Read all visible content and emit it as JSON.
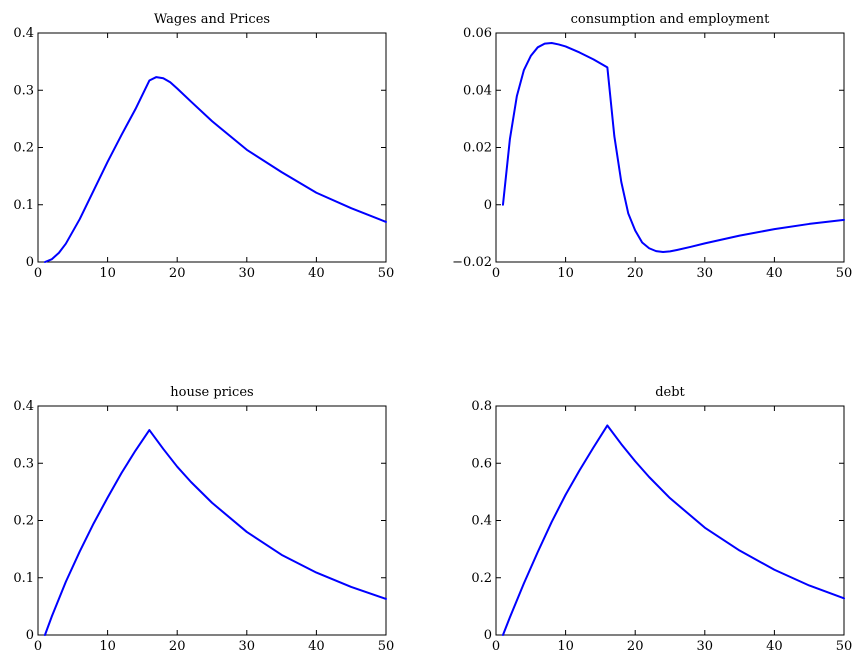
{
  "chart_data": [
    {
      "type": "line",
      "title": "Wages and Prices",
      "xlabel": "",
      "ylabel": "",
      "xlim": [
        0,
        50
      ],
      "ylim": [
        0,
        0.4
      ],
      "xticks": [
        0,
        10,
        20,
        30,
        40,
        50
      ],
      "yticks": [
        0,
        0.1,
        0.2,
        0.3,
        0.4
      ],
      "xtick_labels": [
        "0",
        "10",
        "20",
        "30",
        "40",
        "50"
      ],
      "ytick_labels": [
        "0",
        "0.1",
        "0.2",
        "0.3",
        "0.4"
      ],
      "grid": false,
      "series": [
        {
          "color": "#0000ff",
          "x": [
            1,
            2,
            3,
            4,
            6,
            8,
            10,
            12,
            14,
            16,
            17,
            18,
            19,
            20,
            22,
            25,
            30,
            35,
            40,
            45,
            50
          ],
          "y": [
            0.0,
            0.005,
            0.016,
            0.032,
            0.075,
            0.125,
            0.175,
            0.222,
            0.267,
            0.317,
            0.323,
            0.321,
            0.314,
            0.303,
            0.28,
            0.246,
            0.196,
            0.157,
            0.121,
            0.094,
            0.07
          ]
        }
      ]
    },
    {
      "type": "line",
      "title": "consumption and employment",
      "xlabel": "",
      "ylabel": "",
      "xlim": [
        0,
        50
      ],
      "ylim": [
        -0.02,
        0.06
      ],
      "xticks": [
        0,
        10,
        20,
        30,
        40,
        50
      ],
      "yticks": [
        -0.02,
        0,
        0.02,
        0.04,
        0.06
      ],
      "xtick_labels": [
        "0",
        "10",
        "20",
        "30",
        "40",
        "50"
      ],
      "ytick_labels": [
        "−0.02",
        "0",
        "0.02",
        "0.04",
        "0.06"
      ],
      "grid": false,
      "series": [
        {
          "color": "#0000ff",
          "x": [
            1,
            2,
            3,
            4,
            5,
            6,
            7,
            8,
            9,
            10,
            12,
            14,
            16,
            17,
            18,
            19,
            20,
            21,
            22,
            23,
            24,
            25,
            26,
            28,
            30,
            35,
            40,
            45,
            50
          ],
          "y": [
            0.0,
            0.023,
            0.038,
            0.047,
            0.052,
            0.055,
            0.0563,
            0.0565,
            0.056,
            0.0553,
            0.0532,
            0.0508,
            0.048,
            0.024,
            0.008,
            -0.003,
            -0.009,
            -0.0132,
            -0.0152,
            -0.0162,
            -0.0165,
            -0.0163,
            -0.0158,
            -0.0147,
            -0.0135,
            -0.0108,
            -0.0085,
            -0.0067,
            -0.0053
          ]
        }
      ]
    },
    {
      "type": "line",
      "title": "house prices",
      "xlabel": "",
      "ylabel": "",
      "xlim": [
        0,
        50
      ],
      "ylim": [
        0,
        0.4
      ],
      "xticks": [
        0,
        10,
        20,
        30,
        40,
        50
      ],
      "yticks": [
        0,
        0.1,
        0.2,
        0.3,
        0.4
      ],
      "xtick_labels": [
        "0",
        "10",
        "20",
        "30",
        "40",
        "50"
      ],
      "ytick_labels": [
        "0",
        "0.1",
        "0.2",
        "0.3",
        "0.4"
      ],
      "grid": false,
      "series": [
        {
          "color": "#0000ff",
          "x": [
            1,
            2,
            4,
            6,
            8,
            10,
            12,
            14,
            16,
            18,
            20,
            22,
            25,
            30,
            35,
            40,
            45,
            50
          ],
          "y": [
            0.0,
            0.033,
            0.093,
            0.146,
            0.195,
            0.24,
            0.283,
            0.322,
            0.358,
            0.325,
            0.294,
            0.267,
            0.231,
            0.18,
            0.14,
            0.109,
            0.084,
            0.063
          ]
        }
      ]
    },
    {
      "type": "line",
      "title": "debt",
      "xlabel": "",
      "ylabel": "",
      "xlim": [
        0,
        50
      ],
      "ylim": [
        0,
        0.8
      ],
      "xticks": [
        0,
        10,
        20,
        30,
        40,
        50
      ],
      "yticks": [
        0,
        0.2,
        0.4,
        0.6,
        0.8
      ],
      "xtick_labels": [
        "0",
        "10",
        "20",
        "30",
        "40",
        "50"
      ],
      "ytick_labels": [
        "0",
        "0.2",
        "0.4",
        "0.6",
        "0.8"
      ],
      "grid": false,
      "series": [
        {
          "color": "#0000ff",
          "x": [
            1,
            2,
            4,
            6,
            8,
            10,
            12,
            14,
            16,
            18,
            20,
            22,
            25,
            30,
            35,
            40,
            45,
            50
          ],
          "y": [
            0.0,
            0.062,
            0.18,
            0.29,
            0.395,
            0.49,
            0.575,
            0.655,
            0.732,
            0.667,
            0.607,
            0.552,
            0.478,
            0.375,
            0.295,
            0.228,
            0.173,
            0.128
          ]
        }
      ]
    }
  ]
}
